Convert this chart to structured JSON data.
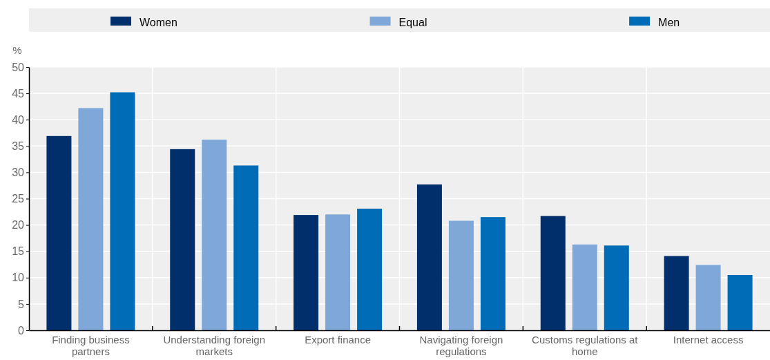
{
  "chart_data": {
    "type": "bar",
    "ylabel": "%",
    "categories": [
      "Finding business partners",
      "Understanding foreign markets",
      "Export finance",
      "Navigating foreign regulations",
      "Customs regulations at home",
      "Internet access"
    ],
    "series": [
      {
        "name": "Women",
        "color": "#002f6c",
        "values": [
          36.9,
          34.4,
          21.9,
          27.7,
          21.7,
          14.1
        ]
      },
      {
        "name": "Equal",
        "color": "#7fa8d9",
        "values": [
          42.2,
          36.2,
          22.0,
          20.8,
          16.3,
          12.4
        ]
      },
      {
        "name": "Men",
        "color": "#006bb6",
        "values": [
          45.2,
          31.3,
          23.1,
          21.5,
          16.1,
          10.5
        ]
      }
    ],
    "ylim": [
      0,
      50
    ],
    "yticks": [
      0,
      5,
      10,
      15,
      20,
      25,
      30,
      35,
      40,
      45,
      50
    ],
    "grid": "y",
    "legend": "top"
  }
}
